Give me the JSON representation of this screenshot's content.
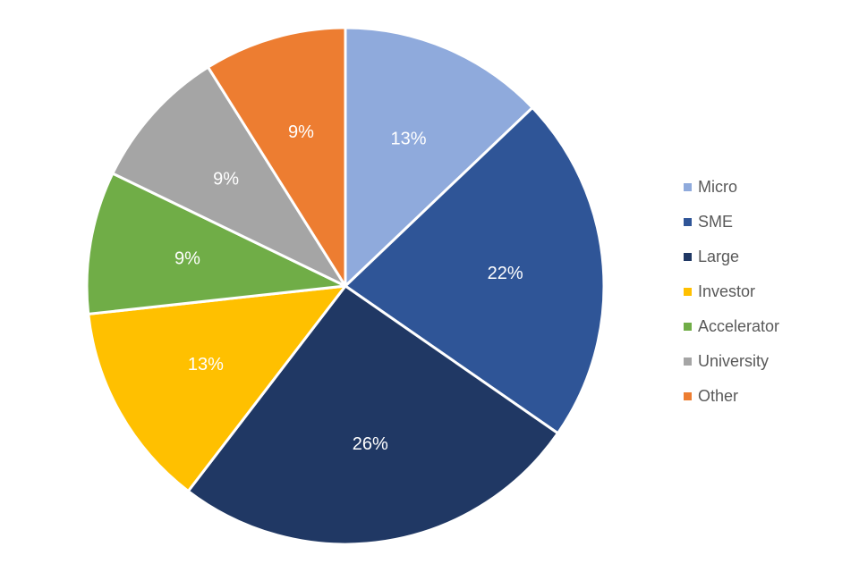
{
  "chart_data": {
    "type": "pie",
    "title": "",
    "start_angle_deg": 0,
    "direction": "clockwise",
    "legend_position": "right",
    "slices": [
      {
        "name": "Micro",
        "value": 13,
        "label": "13%",
        "color": "#8FAADC"
      },
      {
        "name": "SME",
        "value": 22,
        "label": "22%",
        "color": "#2F5597"
      },
      {
        "name": "Large",
        "value": 26,
        "label": "26%",
        "color": "#203864"
      },
      {
        "name": "Investor",
        "value": 13,
        "label": "13%",
        "color": "#FFC000"
      },
      {
        "name": "Accelerator",
        "value": 9,
        "label": "9%",
        "color": "#70AD47"
      },
      {
        "name": "University",
        "value": 9,
        "label": "9%",
        "color": "#A5A5A5"
      },
      {
        "name": "Other",
        "value": 9,
        "label": "9%",
        "color": "#ED7D31"
      }
    ]
  }
}
